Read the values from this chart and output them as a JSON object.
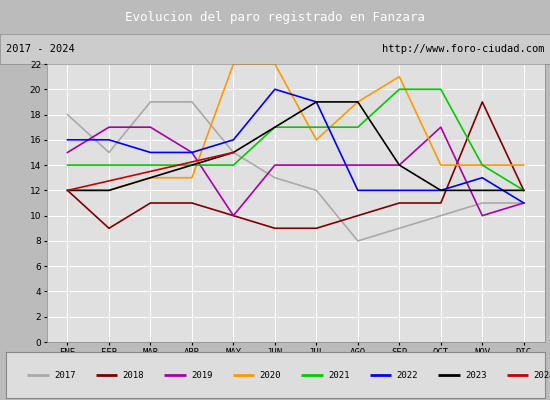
{
  "title": "Evolucion del paro registrado en Fanzara",
  "subtitle_left": "2017 - 2024",
  "subtitle_right": "http://www.foro-ciudad.com",
  "months": [
    "ENE",
    "FEB",
    "MAR",
    "ABR",
    "MAY",
    "JUN",
    "JUL",
    "AGO",
    "SEP",
    "OCT",
    "NOV",
    "DIC"
  ],
  "ylim": [
    0,
    22
  ],
  "yticks": [
    0,
    2,
    4,
    6,
    8,
    10,
    12,
    14,
    16,
    18,
    20,
    22
  ],
  "series": {
    "2017": {
      "color": "#aaaaaa",
      "data": [
        18,
        15,
        19,
        19,
        15,
        13,
        12,
        8,
        9,
        10,
        11,
        11
      ]
    },
    "2018": {
      "color": "#800000",
      "data": [
        12,
        9,
        11,
        11,
        10,
        9,
        9,
        10,
        11,
        11,
        19,
        12
      ]
    },
    "2019": {
      "color": "#aa00aa",
      "data": [
        15,
        17,
        17,
        15,
        10,
        14,
        14,
        14,
        14,
        17,
        10,
        11
      ]
    },
    "2020": {
      "color": "#ff9900",
      "data": [
        12,
        12,
        13,
        13,
        22,
        22,
        16,
        19,
        21,
        14,
        14,
        14
      ]
    },
    "2021": {
      "color": "#00cc00",
      "data": [
        14,
        14,
        14,
        14,
        14,
        17,
        17,
        17,
        20,
        20,
        14,
        12
      ]
    },
    "2022": {
      "color": "#0000ff",
      "data": [
        16,
        16,
        15,
        15,
        16,
        20,
        19,
        12,
        12,
        12,
        13,
        11
      ]
    },
    "2023": {
      "color": "#000000",
      "data": [
        12,
        12,
        13,
        14,
        15,
        17,
        19,
        19,
        14,
        12,
        12,
        12
      ]
    },
    "2024": {
      "color": "#cc0000",
      "data": [
        12,
        null,
        null,
        null,
        15,
        null,
        null,
        null,
        null,
        null,
        null,
        null
      ]
    }
  },
  "title_bg": "#4466bb",
  "title_color": "#ffffff",
  "subtitle_bg": "#cccccc",
  "plot_bg": "#e0e0e0",
  "grid_color": "#ffffff",
  "legend_bg": "#dddddd",
  "fig_bg": "#bbbbbb"
}
